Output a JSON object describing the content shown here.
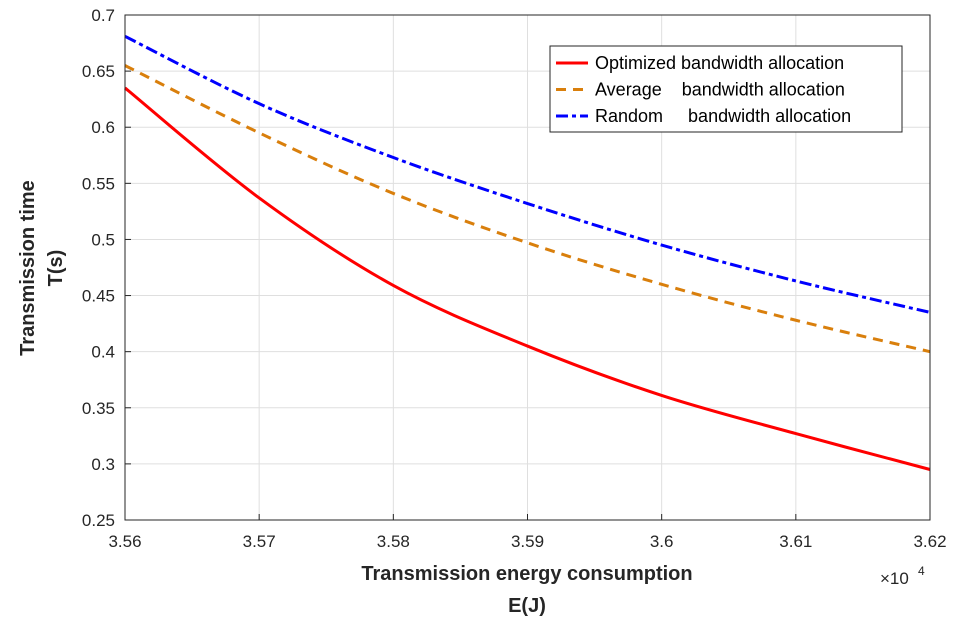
{
  "chart_data": {
    "type": "line",
    "xlabel": "Transmission energy consumption",
    "xlabel2": "E(J)",
    "ylabel": "Transmission time",
    "ylabel2": "T(s)",
    "x_exponent_label": "×10",
    "x_exponent_power": "4",
    "xlim": [
      3.56,
      3.62
    ],
    "ylim": [
      0.25,
      0.7
    ],
    "xticks": [
      "3.56",
      "3.57",
      "3.58",
      "3.59",
      "3.6",
      "3.61",
      "3.62"
    ],
    "yticks": [
      "0.25",
      "0.3",
      "0.35",
      "0.4",
      "0.45",
      "0.5",
      "0.55",
      "0.6",
      "0.65",
      "0.7"
    ],
    "grid": true,
    "legend_position": "top-right",
    "x": [
      3.56,
      3.57,
      3.58,
      3.59,
      3.6,
      3.61,
      3.62
    ],
    "series": [
      {
        "name": "Optimized bandwidth allocation",
        "color": "#ff0000",
        "dash": "solid",
        "values": [
          0.635,
          0.537,
          0.459,
          0.405,
          0.361,
          0.327,
          0.295
        ]
      },
      {
        "name": "Average    bandwidth allocation",
        "color": "#d97f0c",
        "dash": "dashed",
        "values": [
          0.655,
          0.595,
          0.541,
          0.497,
          0.46,
          0.428,
          0.4
        ]
      },
      {
        "name": "Random     bandwidth allocation",
        "color": "#0000ff",
        "dash": "dashdot",
        "values": [
          0.681,
          0.621,
          0.573,
          0.532,
          0.495,
          0.463,
          0.435
        ]
      }
    ]
  }
}
